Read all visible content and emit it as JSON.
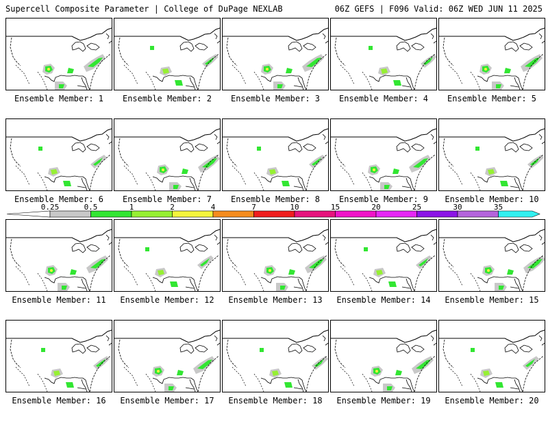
{
  "header": {
    "left_title": "Supercell Composite Parameter | College of DuPage NEXLAB",
    "right_title": "06Z GEFS | F096 Valid: 06Z WED JUN 11 2025"
  },
  "members": [
    "Ensemble Member: 1",
    "Ensemble Member: 2",
    "Ensemble Member: 3",
    "Ensemble Member: 4",
    "Ensemble Member: 5",
    "Ensemble Member: 6",
    "Ensemble Member: 7",
    "Ensemble Member: 8",
    "Ensemble Member: 9",
    "Ensemble Member: 10",
    "Ensemble Member: 11",
    "Ensemble Member: 12",
    "Ensemble Member: 13",
    "Ensemble Member: 14",
    "Ensemble Member: 15",
    "Ensemble Member: 16",
    "Ensemble Member: 17",
    "Ensemble Member: 18",
    "Ensemble Member: 19",
    "Ensemble Member: 20"
  ],
  "legend": {
    "thresholds": [
      "0.25",
      "0.5",
      "1",
      "2",
      "4",
      "7",
      "10",
      "15",
      "20",
      "25",
      "30",
      "35"
    ],
    "colors": [
      "#c8c8c8",
      "#32e632",
      "#96f032",
      "#f5f53c",
      "#f58c1e",
      "#f01e1e",
      "#e6147d",
      "#f014c8",
      "#e628f5",
      "#8c14e6",
      "#b464dc",
      "#32f0f0"
    ]
  }
}
